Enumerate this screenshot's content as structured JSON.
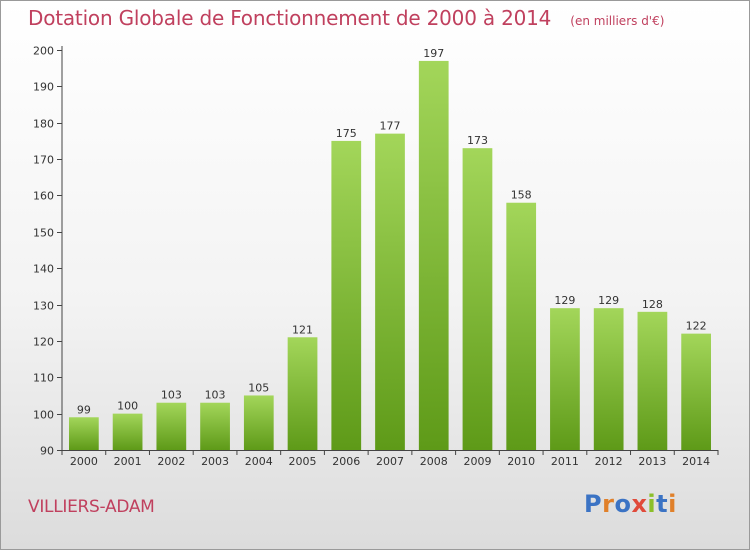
{
  "header": {
    "title": "Dotation Globale de Fonctionnement de 2000 à 2014",
    "unit": "(en milliers d'€)"
  },
  "footer": {
    "place": "VILLIERS-ADAM",
    "logo_text": "Proxiti"
  },
  "colors": {
    "title": "#c0405e",
    "bar_top": "#a3d65a",
    "bar_bottom": "#5e9a18"
  },
  "chart_data": {
    "type": "bar",
    "title": "Dotation Globale de Fonctionnement de 2000 à 2014",
    "subtitle": "(en milliers d'€)",
    "categories": [
      "2000",
      "2001",
      "2002",
      "2003",
      "2004",
      "2005",
      "2006",
      "2007",
      "2008",
      "2009",
      "2010",
      "2011",
      "2012",
      "2013",
      "2014"
    ],
    "values": [
      99,
      100,
      103,
      103,
      105,
      121,
      175,
      177,
      197,
      173,
      158,
      129,
      129,
      128,
      122
    ],
    "data_labels": [
      "99",
      "100",
      "103",
      "103",
      "105",
      "121",
      "175",
      "177",
      "197",
      "173",
      "158",
      "129",
      "129",
      "128",
      "122"
    ],
    "yticks": [
      90,
      100,
      110,
      120,
      130,
      140,
      150,
      160,
      170,
      180,
      190,
      200
    ],
    "ytick_labels": [
      "90",
      "100",
      "110",
      "120",
      "130",
      "140",
      "150",
      "160",
      "170",
      "180",
      "190",
      "200"
    ],
    "ylim": [
      90,
      200
    ],
    "xlabel": "",
    "ylabel": "",
    "grid": false,
    "legend": "none"
  }
}
